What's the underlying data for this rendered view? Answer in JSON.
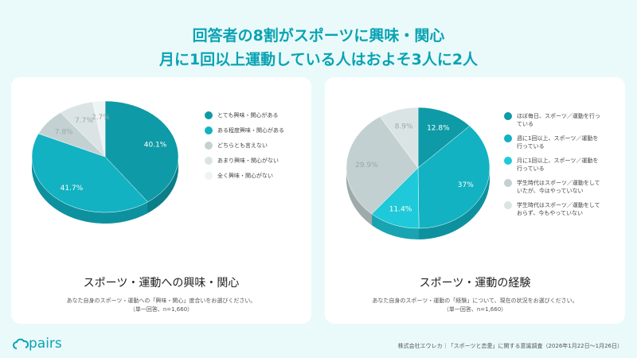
{
  "title": {
    "line1": "回答者の8割がスポーツに興味・関心",
    "line2": "月に1回以上運動している人はおよそ3人に2人"
  },
  "chart_data": [
    {
      "type": "pie",
      "title": "スポーツ・運動への興味・関心",
      "question": "あなた自身のスポーツ・運動への「興味・関心」度合いをお選びください。",
      "note": "（単一回答、n=1,660）",
      "categories": [
        "とても興味・関心がある",
        "ある程度興味・関心がある",
        "どちらとも言えない",
        "あまり興味・関心がない",
        "全く興味・関心がない"
      ],
      "values": [
        40.1,
        41.7,
        7.8,
        7.7,
        2.7
      ],
      "labels": [
        "40.1%",
        "41.7%",
        "7.8%",
        "7.7%",
        "2.7%"
      ],
      "colors": [
        "#0e9aa6",
        "#12b2c2",
        "#c3d1d2",
        "#dbe4e5",
        "#eef3f4"
      ],
      "legend": "right"
    },
    {
      "type": "pie",
      "title": "スポーツ・運動の経験",
      "question": "あなた自身のスポーツ・運動の「経験」について、現在の状況をお選びください。",
      "note": "（単一回答、n=1,660）",
      "categories": [
        "ほぼ毎日、スポーツ／運動を行っている",
        "週に1回以上、スポーツ／運動を行っている",
        "月に1回以上、スポーツ／運動を行っている",
        "学生時代はスポーツ／運動をしていたが、今はやっていない",
        "学生時代はスポーツ／運動をしておらず、今もやっていない"
      ],
      "values": [
        12.8,
        37,
        11.4,
        29.9,
        8.9
      ],
      "labels": [
        "12.8%",
        "37%",
        "11.4%",
        "29.9%",
        "8.9%"
      ],
      "colors": [
        "#0e9aa6",
        "#12b2c2",
        "#1fc9d9",
        "#c3d0d1",
        "#dbe4e5"
      ],
      "legend": "right"
    }
  ],
  "footer": {
    "logo": "pairs",
    "source": "株式会社エウレカ｜「スポーツと恋愛」に関する意識調査（2026年1月22日〜1月26日）"
  }
}
